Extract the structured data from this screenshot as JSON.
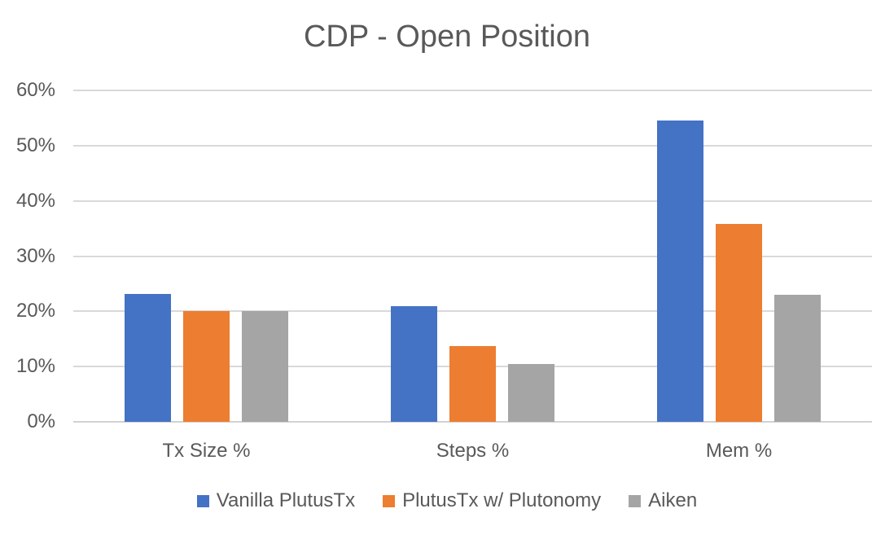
{
  "chart_data": {
    "type": "bar",
    "title": "CDP - Open Position",
    "categories": [
      "Tx Size %",
      "Steps %",
      "Mem %"
    ],
    "series": [
      {
        "name": "Vanilla PlutusTx",
        "color": "#4472C4",
        "values": [
          23.2,
          21.0,
          54.5
        ]
      },
      {
        "name": "PlutusTx w/ Plutonomy",
        "color": "#ED7D31",
        "values": [
          20.0,
          13.7,
          35.8
        ]
      },
      {
        "name": "Aiken",
        "color": "#A5A5A5",
        "values": [
          20.0,
          10.4,
          23.0
        ]
      }
    ],
    "xlabel": "",
    "ylabel": "",
    "ylim": [
      0,
      60
    ],
    "y_tick_step": 10,
    "y_tick_labels": [
      "0%",
      "10%",
      "20%",
      "30%",
      "40%",
      "50%",
      "60%"
    ],
    "grid": true,
    "legend_position": "bottom"
  },
  "styles": {
    "background": "#FFFFFF",
    "text_color": "#595959",
    "gridline_color": "#D9D9D9",
    "axis_line_color": "#D2D2D2"
  }
}
